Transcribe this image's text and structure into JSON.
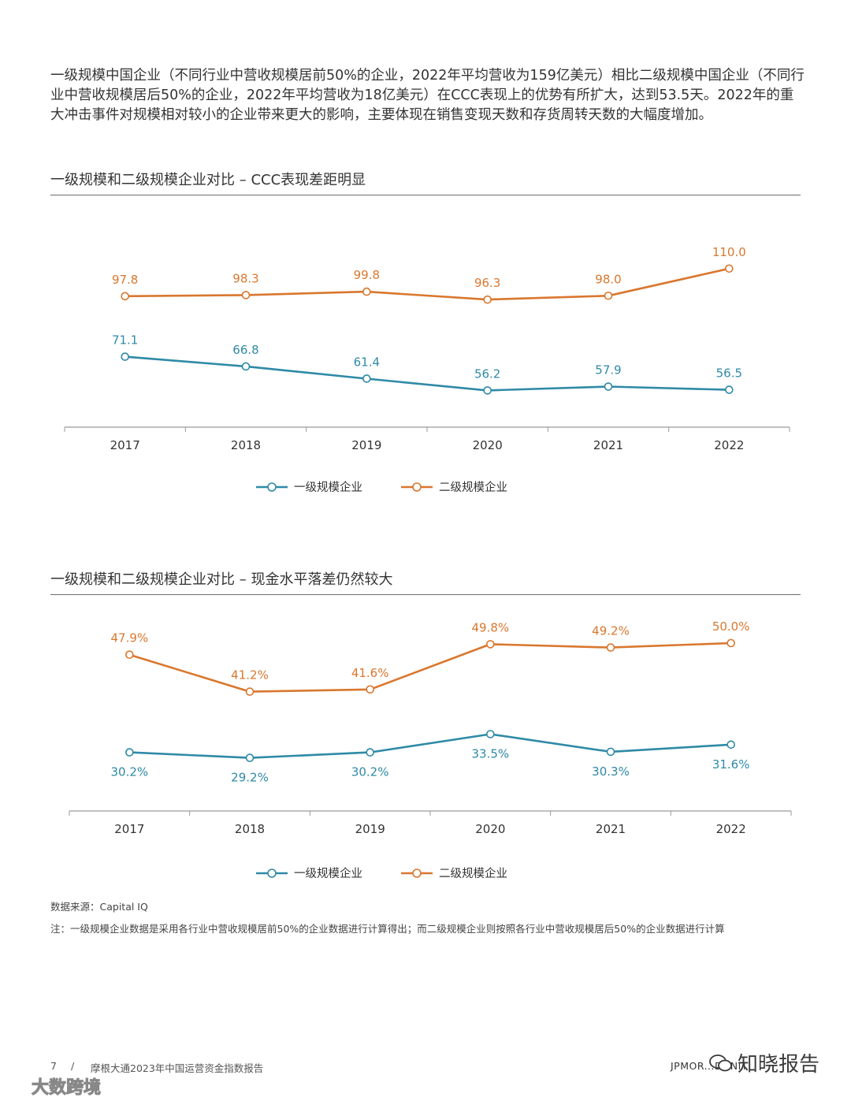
{
  "intro": {
    "text": "一级规模中国企业（不同行业中营收规模居前50%的企业，2022年平均营收为159亿美元）相比二级规模中国企业（不同行业中营收规模居后50%的企业，2022年平均营收为18亿美元）在CCC表现上的优势有所扩大，达到53.5天。2022年的重大冲击事件对规模相对较小的企业带来更大的影响，主要体现在销售变现天数和存货周转天数的大幅度增加。"
  },
  "colors": {
    "tier1": "#2f8aa6",
    "tier2": "#d9772e",
    "axis": "#9a9a9a"
  },
  "chart_data": [
    {
      "type": "line",
      "title": "一级规模和二级规模企业对比 – CCC表现差距明显",
      "categories": [
        "2017",
        "2018",
        "2019",
        "2020",
        "2021",
        "2022"
      ],
      "series": [
        {
          "name": "一级规模企业",
          "values": [
            71.1,
            66.8,
            61.4,
            56.2,
            57.9,
            56.5
          ],
          "labels": [
            "71.1",
            "66.8",
            "61.4",
            "56.2",
            "57.9",
            "56.5"
          ]
        },
        {
          "name": "二级规模企业",
          "values": [
            97.8,
            98.3,
            99.8,
            96.3,
            98.0,
            110.0
          ],
          "labels": [
            "97.8",
            "98.3",
            "99.8",
            "96.3",
            "98.0",
            "110.0"
          ]
        }
      ],
      "xlabel": "",
      "ylabel": "",
      "ylim": [
        40,
        120
      ],
      "grid": false,
      "legend": "bottom-center"
    },
    {
      "type": "line",
      "title": "一级规模和二级规模企业对比 – 现金水平落差仍然较大",
      "categories": [
        "2017",
        "2018",
        "2019",
        "2020",
        "2021",
        "2022"
      ],
      "series": [
        {
          "name": "一级规模企业",
          "values": [
            30.2,
            29.2,
            30.2,
            33.5,
            30.3,
            31.6
          ],
          "labels": [
            "30.2%",
            "29.2%",
            "30.2%",
            "33.5%",
            "30.3%",
            "31.6%"
          ]
        },
        {
          "name": "二级规模企业",
          "values": [
            47.9,
            41.2,
            41.6,
            49.8,
            49.2,
            50.0
          ],
          "labels": [
            "47.9%",
            "41.2%",
            "41.6%",
            "49.8%",
            "49.2%",
            "50.0%"
          ]
        }
      ],
      "xlabel": "",
      "ylabel": "",
      "ylim": [
        20,
        55
      ],
      "grid": false,
      "legend": "bottom-center"
    }
  ],
  "source": "数据来源：Capital IQ",
  "note": "注：一级规模企业数据是采用各行业中营收规模居前50%的企业数据进行计算得出；而二级规模企业则按照各行业中营收规模居后50%的企业数据进行计算",
  "footer": {
    "page": "7",
    "slash": "/",
    "title": "摩根大通2023年中国运营资金指数报告",
    "brand": "JPMOR...DUNIT"
  },
  "watermarks": {
    "right": "知晓报告",
    "left": "大数跨境"
  }
}
